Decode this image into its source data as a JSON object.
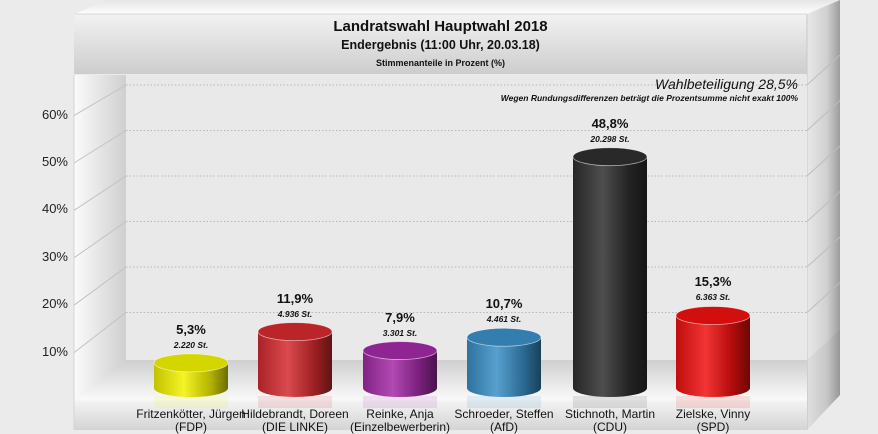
{
  "header": {
    "title": "Landratswahl Hauptwahl 2018",
    "subtitle": "Endergebnis (11:00 Uhr, 20.03.18)",
    "unit_note": "Stimmenanteile in Prozent (%)"
  },
  "turnout": "Wahlbeteiligung 28,5%",
  "rounding_note": "Wegen Rundungsdifferenzen beträgt die Prozentsumme nicht exakt 100%",
  "chart_data": {
    "type": "bar",
    "title": "Landratswahl Hauptwahl 2018",
    "subtitle": "Endergebnis (11:00 Uhr, 20.03.18)",
    "ylabel": "Stimmenanteile in Prozent (%)",
    "xlabel": "",
    "ylim": [
      0,
      60
    ],
    "y_ticks": [
      "10%",
      "20%",
      "30%",
      "40%",
      "50%",
      "60%"
    ],
    "grid": true,
    "style": "3d-cylinder",
    "categories": [
      {
        "name": "Fritzenkötter, Jürgen",
        "party": "(FDP)",
        "value": 5.3,
        "label": "5,3%",
        "votes": "2.220 St.",
        "color": "#f2f200"
      },
      {
        "name": "Hildebrandt, Doreen",
        "party": "(DIE LINKE)",
        "value": 11.9,
        "label": "11,9%",
        "votes": "4.936 St.",
        "color": "#d42a2f"
      },
      {
        "name": "Reinke, Anja",
        "party": "(Einzelbewerberin)",
        "value": 7.9,
        "label": "7,9%",
        "votes": "3.301 St.",
        "color": "#a32aa6"
      },
      {
        "name": "Schroeder, Steffen",
        "party": "(AfD)",
        "value": 10.7,
        "label": "10,7%",
        "votes": "4.461 St.",
        "color": "#3a8fc6"
      },
      {
        "name": "Stichnoth, Martin",
        "party": "(CDU)",
        "value": 48.8,
        "label": "48,8%",
        "votes": "20.298 St.",
        "color": "#2f2f2f"
      },
      {
        "name": "Zielske, Vinny",
        "party": "(SPD)",
        "value": 15.3,
        "label": "15,3%",
        "votes": "6.363 St.",
        "color": "#f01010"
      }
    ]
  }
}
